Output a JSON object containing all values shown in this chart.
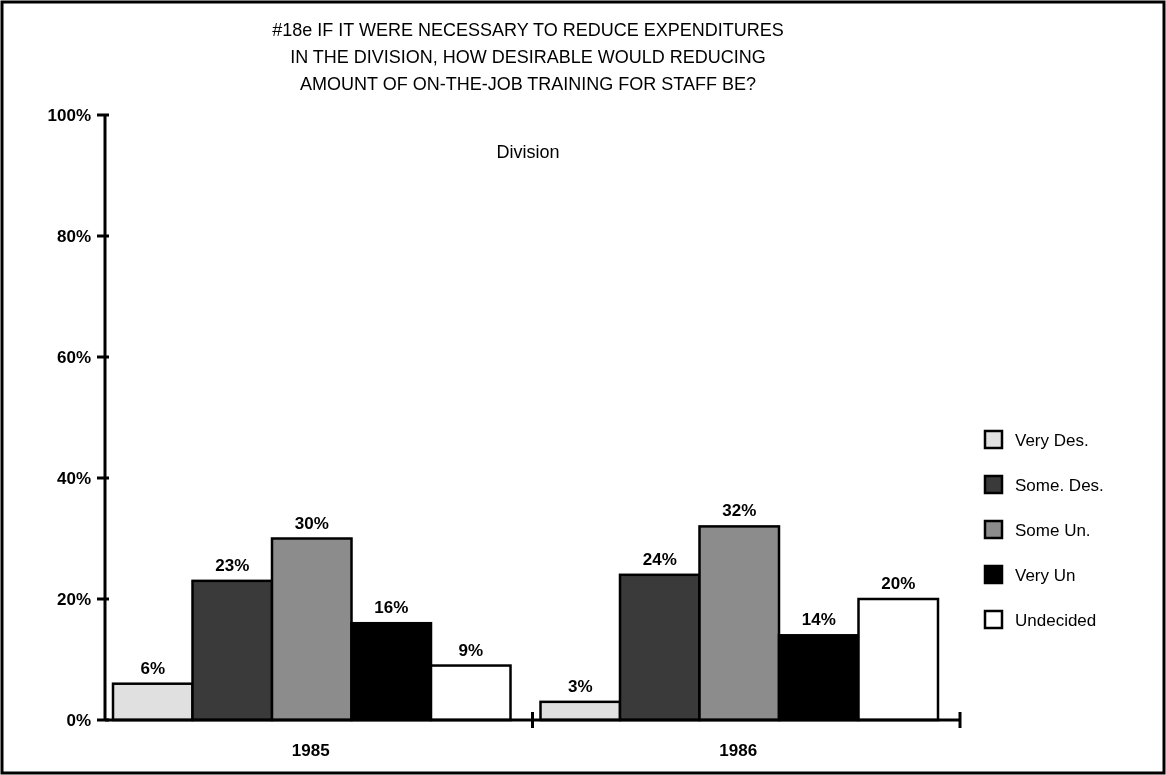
{
  "chart_data": {
    "type": "bar",
    "title": "#18e IF IT WERE NECESSARY TO REDUCE EXPENDITURES\nIN THE DIVISION, HOW DESIRABLE WOULD REDUCING\nAMOUNT OF ON-THE-JOB TRAINING FOR STAFF BE?",
    "subtitle": "Division",
    "categories": [
      "1985",
      "1986"
    ],
    "series": [
      {
        "name": "Very Des.",
        "color": "#e0e0e0",
        "values": [
          6,
          3
        ],
        "value_labels": [
          "6%",
          "3%"
        ]
      },
      {
        "name": "Some. Des.",
        "color": "#3a3a3a",
        "values": [
          23,
          24
        ],
        "value_labels": [
          "23%",
          "24%"
        ]
      },
      {
        "name": "Some Un.",
        "color": "#8c8c8c",
        "values": [
          30,
          32
        ],
        "value_labels": [
          "30%",
          "32%"
        ]
      },
      {
        "name": "Very Un",
        "color": "#000000",
        "values": [
          16,
          14
        ],
        "value_labels": [
          "16%",
          "14%"
        ]
      },
      {
        "name": "Undecided",
        "color": "#ffffff",
        "values": [
          9,
          20
        ],
        "value_labels": [
          "9%",
          "20%"
        ]
      }
    ],
    "ylim": [
      0,
      100
    ],
    "yticks": [
      {
        "value": 0,
        "label": "0%"
      },
      {
        "value": 20,
        "label": "20%"
      },
      {
        "value": 40,
        "label": "40%"
      },
      {
        "value": 60,
        "label": "60%"
      },
      {
        "value": 80,
        "label": "80%"
      },
      {
        "value": 100,
        "label": "100%"
      }
    ],
    "legend": "right",
    "grid": false
  }
}
